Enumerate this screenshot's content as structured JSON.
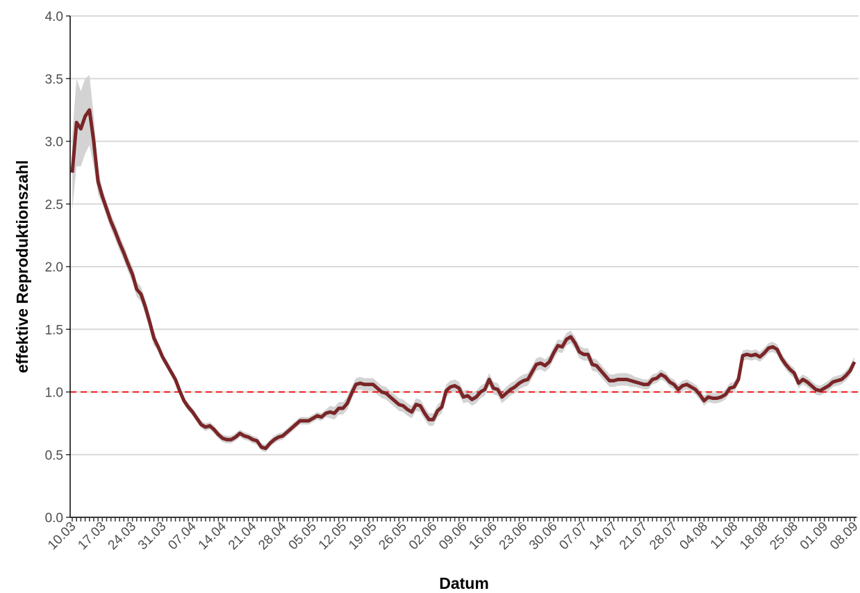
{
  "chart_data": {
    "type": "line",
    "x_label": "Datum",
    "y_label": "effektive Reproduktionszahl",
    "categories": [
      "10.03",
      null,
      null,
      null,
      null,
      null,
      null,
      "17.03",
      null,
      null,
      null,
      null,
      null,
      null,
      "24.03",
      null,
      null,
      null,
      null,
      null,
      null,
      "31.03",
      null,
      null,
      null,
      null,
      null,
      null,
      "07.04",
      null,
      null,
      null,
      null,
      null,
      null,
      "14.04",
      null,
      null,
      null,
      null,
      null,
      null,
      "21.04",
      null,
      null,
      null,
      null,
      null,
      null,
      "28.04",
      null,
      null,
      null,
      null,
      null,
      null,
      "05.05",
      null,
      null,
      null,
      null,
      null,
      null,
      "12.05",
      null,
      null,
      null,
      null,
      null,
      null,
      "19.05",
      null,
      null,
      null,
      null,
      null,
      null,
      "26.05",
      null,
      null,
      null,
      null,
      null,
      null,
      "02.06",
      null,
      null,
      null,
      null,
      null,
      null,
      "09.06",
      null,
      null,
      null,
      null,
      null,
      null,
      "16.06",
      null,
      null,
      null,
      null,
      null,
      null,
      "23.06",
      null,
      null,
      null,
      null,
      null,
      null,
      "30.06",
      null,
      null,
      null,
      null,
      null,
      null,
      "07.07",
      null,
      null,
      null,
      null,
      null,
      null,
      "14.07",
      null,
      null,
      null,
      null,
      null,
      null,
      "21.07",
      null,
      null,
      null,
      null,
      null,
      null,
      "28.07",
      null,
      null,
      null,
      null,
      null,
      null,
      "04.08",
      null,
      null,
      null,
      null,
      null,
      null,
      "11.08",
      null,
      null,
      null,
      null,
      null,
      null,
      "18.08",
      null,
      null,
      null,
      null,
      null,
      null,
      "25.08",
      null,
      null,
      null,
      null,
      null,
      null,
      "01.09",
      null,
      null,
      null,
      null,
      null,
      null,
      "08.09"
    ],
    "values": [
      2.75,
      3.15,
      3.1,
      3.2,
      3.25,
      3.0,
      2.68,
      2.56,
      2.46,
      2.36,
      2.28,
      2.19,
      2.11,
      2.02,
      1.94,
      1.82,
      1.78,
      1.68,
      1.56,
      1.43,
      1.36,
      1.28,
      1.22,
      1.16,
      1.1,
      1.01,
      0.93,
      0.88,
      0.84,
      0.79,
      0.74,
      0.72,
      0.73,
      0.7,
      0.66,
      0.63,
      0.62,
      0.62,
      0.64,
      0.67,
      0.65,
      0.64,
      0.62,
      0.61,
      0.56,
      0.55,
      0.59,
      0.62,
      0.64,
      0.65,
      0.68,
      0.71,
      0.74,
      0.77,
      0.77,
      0.77,
      0.79,
      0.81,
      0.8,
      0.83,
      0.84,
      0.83,
      0.87,
      0.87,
      0.91,
      0.99,
      1.06,
      1.07,
      1.06,
      1.06,
      1.06,
      1.03,
      1.0,
      0.99,
      0.96,
      0.93,
      0.9,
      0.89,
      0.86,
      0.84,
      0.9,
      0.89,
      0.83,
      0.78,
      0.78,
      0.85,
      0.88,
      1.01,
      1.04,
      1.05,
      1.03,
      0.96,
      0.97,
      0.94,
      0.96,
      1.0,
      1.02,
      1.1,
      1.03,
      1.02,
      0.96,
      0.99,
      1.02,
      1.04,
      1.07,
      1.09,
      1.1,
      1.16,
      1.22,
      1.23,
      1.21,
      1.24,
      1.31,
      1.37,
      1.36,
      1.42,
      1.44,
      1.39,
      1.32,
      1.3,
      1.3,
      1.22,
      1.21,
      1.17,
      1.13,
      1.09,
      1.09,
      1.1,
      1.1,
      1.1,
      1.09,
      1.08,
      1.07,
      1.06,
      1.06,
      1.1,
      1.11,
      1.14,
      1.12,
      1.08,
      1.06,
      1.02,
      1.05,
      1.06,
      1.04,
      1.02,
      0.98,
      0.93,
      0.96,
      0.95,
      0.95,
      0.96,
      0.98,
      1.03,
      1.04,
      1.1,
      1.29,
      1.3,
      1.29,
      1.3,
      1.28,
      1.31,
      1.35,
      1.36,
      1.34,
      1.27,
      1.22,
      1.18,
      1.15,
      1.07,
      1.1,
      1.08,
      1.05,
      1.02,
      1.01,
      1.03,
      1.05,
      1.08,
      1.09,
      1.1,
      1.13,
      1.17,
      1.24
    ],
    "color": "#7a2527",
    "band": {
      "color": "#d3d3d3",
      "lower": [
        2.45,
        2.8,
        2.8,
        2.9,
        2.97,
        2.8,
        2.58,
        2.5,
        2.4,
        2.3,
        2.22,
        2.13,
        2.05,
        1.96,
        1.88,
        1.76,
        1.72,
        1.62,
        1.5,
        1.37,
        1.33,
        1.25,
        1.19,
        1.13,
        1.07,
        0.98,
        0.9,
        0.85,
        0.81,
        0.76,
        0.71,
        0.69,
        0.7,
        0.67,
        0.63,
        0.6,
        0.59,
        0.59,
        0.61,
        0.64,
        0.62,
        0.61,
        0.59,
        0.58,
        0.53,
        0.52,
        0.56,
        0.59,
        0.61,
        0.62,
        0.65,
        0.68,
        0.71,
        0.74,
        0.74,
        0.74,
        0.76,
        0.78,
        0.77,
        0.8,
        0.79,
        0.78,
        0.82,
        0.82,
        0.86,
        0.94,
        1.01,
        1.02,
        1.01,
        1.01,
        1.01,
        0.98,
        0.95,
        0.94,
        0.91,
        0.88,
        0.85,
        0.84,
        0.81,
        0.79,
        0.85,
        0.84,
        0.78,
        0.73,
        0.73,
        0.8,
        0.83,
        0.96,
        0.99,
        1.0,
        0.98,
        0.91,
        0.92,
        0.89,
        0.91,
        0.95,
        0.97,
        1.05,
        0.98,
        0.97,
        0.91,
        0.94,
        0.97,
        0.99,
        1.02,
        1.04,
        1.05,
        1.11,
        1.17,
        1.18,
        1.16,
        1.19,
        1.26,
        1.32,
        1.31,
        1.37,
        1.39,
        1.34,
        1.27,
        1.25,
        1.25,
        1.17,
        1.16,
        1.12,
        1.08,
        1.04,
        1.04,
        1.05,
        1.05,
        1.05,
        1.04,
        1.04,
        1.03,
        1.02,
        1.02,
        1.06,
        1.07,
        1.1,
        1.08,
        1.04,
        1.02,
        0.98,
        1.01,
        1.02,
        1.0,
        0.98,
        0.94,
        0.89,
        0.92,
        0.91,
        0.91,
        0.92,
        0.94,
        0.99,
        1.0,
        1.06,
        1.25,
        1.26,
        1.25,
        1.26,
        1.24,
        1.27,
        1.31,
        1.32,
        1.3,
        1.23,
        1.18,
        1.14,
        1.11,
        1.03,
        1.06,
        1.04,
        1.01,
        0.98,
        0.97,
        0.99,
        1.01,
        1.04,
        1.05,
        1.06,
        1.09,
        1.13,
        1.2
      ],
      "upper": [
        3.05,
        3.5,
        3.4,
        3.5,
        3.53,
        3.2,
        2.78,
        2.62,
        2.52,
        2.42,
        2.34,
        2.25,
        2.17,
        2.08,
        2.0,
        1.88,
        1.84,
        1.74,
        1.62,
        1.49,
        1.39,
        1.31,
        1.25,
        1.19,
        1.13,
        1.04,
        0.96,
        0.91,
        0.87,
        0.82,
        0.77,
        0.75,
        0.76,
        0.73,
        0.69,
        0.66,
        0.65,
        0.65,
        0.67,
        0.7,
        0.68,
        0.67,
        0.65,
        0.64,
        0.59,
        0.58,
        0.62,
        0.65,
        0.67,
        0.68,
        0.71,
        0.74,
        0.77,
        0.8,
        0.8,
        0.8,
        0.82,
        0.84,
        0.83,
        0.86,
        0.89,
        0.88,
        0.92,
        0.92,
        0.96,
        1.04,
        1.11,
        1.12,
        1.11,
        1.11,
        1.11,
        1.08,
        1.05,
        1.04,
        1.01,
        0.98,
        0.95,
        0.94,
        0.91,
        0.89,
        0.95,
        0.94,
        0.88,
        0.83,
        0.83,
        0.9,
        0.93,
        1.06,
        1.09,
        1.1,
        1.08,
        1.01,
        1.02,
        0.99,
        1.01,
        1.05,
        1.07,
        1.15,
        1.08,
        1.07,
        1.01,
        1.04,
        1.07,
        1.09,
        1.12,
        1.14,
        1.15,
        1.21,
        1.27,
        1.28,
        1.26,
        1.29,
        1.36,
        1.42,
        1.41,
        1.47,
        1.49,
        1.44,
        1.37,
        1.35,
        1.35,
        1.27,
        1.26,
        1.22,
        1.18,
        1.14,
        1.14,
        1.15,
        1.15,
        1.15,
        1.14,
        1.12,
        1.11,
        1.1,
        1.1,
        1.14,
        1.15,
        1.18,
        1.16,
        1.12,
        1.1,
        1.06,
        1.09,
        1.1,
        1.08,
        1.06,
        1.02,
        0.97,
        1.0,
        0.99,
        0.99,
        1.0,
        1.02,
        1.07,
        1.08,
        1.14,
        1.33,
        1.34,
        1.33,
        1.34,
        1.32,
        1.35,
        1.39,
        1.4,
        1.38,
        1.31,
        1.26,
        1.22,
        1.19,
        1.11,
        1.14,
        1.12,
        1.09,
        1.06,
        1.05,
        1.07,
        1.09,
        1.12,
        1.13,
        1.14,
        1.17,
        1.21,
        1.28
      ]
    },
    "reference_line": {
      "value": 1,
      "color": "#ee1111"
    },
    "ylim": [
      0,
      4
    ],
    "yticks": [
      {
        "value": 0,
        "label": "0.0"
      },
      0.5,
      {
        "value": 1,
        "label": "1.0"
      },
      1.5,
      {
        "value": 2,
        "label": "2.0"
      },
      2.5,
      {
        "value": 3,
        "label": "3.0"
      },
      3.5,
      {
        "value": 4,
        "label": "4.0"
      }
    ],
    "grid": true
  }
}
